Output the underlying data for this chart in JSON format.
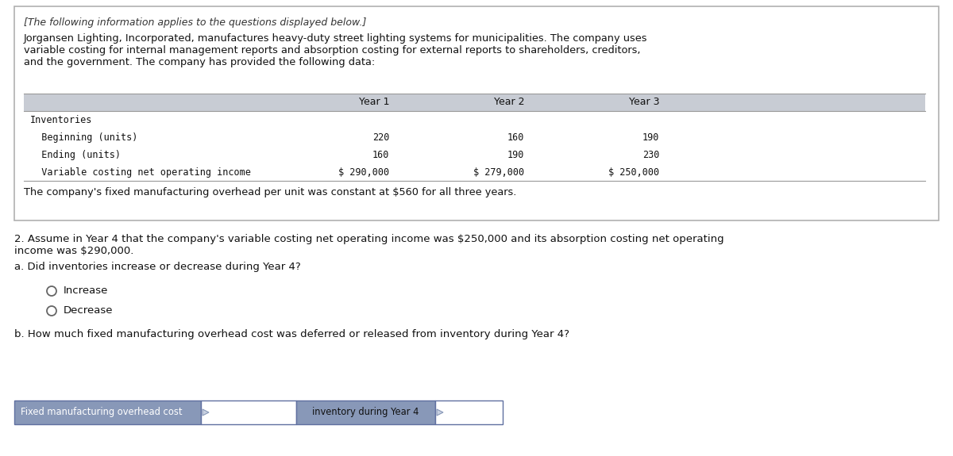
{
  "header_italic": "[The following information applies to the questions displayed below.]",
  "paragraph1": "Jorgansen Lighting, Incorporated, manufactures heavy-duty street lighting systems for municipalities. The company uses\nvariable costing for internal management reports and absorption costing for external reports to shareholders, creditors,\nand the government. The company has provided the following data:",
  "table_headers": [
    "Year 1",
    "Year 2",
    "Year 3"
  ],
  "table_rows": [
    {
      "label": "Inventories",
      "indent": 0,
      "values": [
        "",
        "",
        ""
      ]
    },
    {
      "label": "  Beginning (units)",
      "indent": 0,
      "values": [
        "220",
        "160",
        "190"
      ]
    },
    {
      "label": "  Ending (units)",
      "indent": 0,
      "values": [
        "160",
        "190",
        "230"
      ]
    },
    {
      "label": "  Variable costing net operating income",
      "indent": 0,
      "values": [
        "$ 290,000",
        "$ 279,000",
        "$ 250,000"
      ]
    }
  ],
  "footnote": "The company's fixed manufacturing overhead per unit was constant at $560 for all three years.",
  "question2_text": "2. Assume in Year 4 that the company's variable costing net operating income was $250,000 and its absorption costing net operating\nincome was $290,000.",
  "question_a": "a. Did inventories increase or decrease during Year 4?",
  "radio_options": [
    "Increase",
    "Decrease"
  ],
  "question_b": "b. How much fixed manufacturing overhead cost was deferred or released from inventory during Year 4?",
  "answer_row_label": "Fixed manufacturing overhead cost",
  "answer_row_mid": "inventory during Year 4",
  "fig_bg": "#ffffff",
  "outer_box_bg": "#ffffff",
  "outer_box_border": "#b0b0b0",
  "table_header_bg": "#c8ccd4",
  "answer_label_bg": "#8898b8",
  "answer_mid_bg": "#8898b8",
  "answer_box_bg": "#ffffff",
  "answer_border": "#6070a0"
}
